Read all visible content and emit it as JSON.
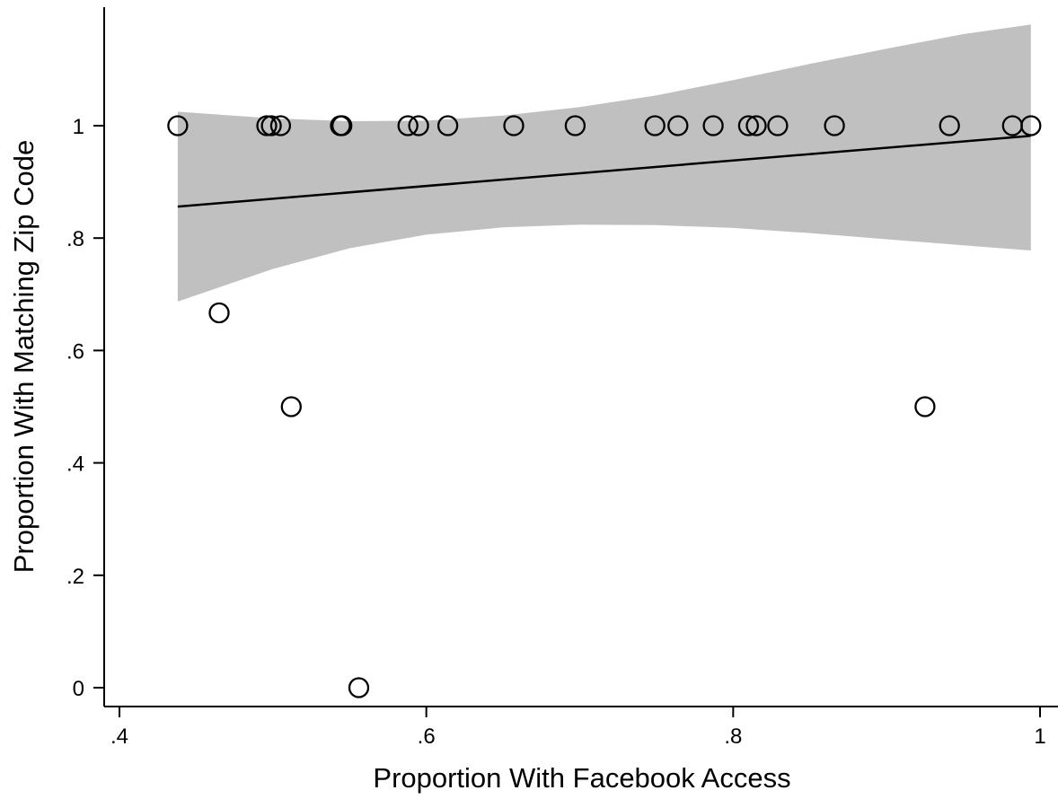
{
  "chart_data": {
    "type": "scatter",
    "title": "",
    "xlabel": "Proportion With Facebook Access",
    "ylabel": "Proportion With Matching Zip Code",
    "xlim": [
      0.4,
      1.0
    ],
    "ylim": [
      0,
      1.0
    ],
    "x_ticks": [
      {
        "value": 0.4,
        "label": ".4"
      },
      {
        "value": 0.6,
        "label": ".6"
      },
      {
        "value": 0.8,
        "label": ".8"
      },
      {
        "value": 1.0,
        "label": "1"
      }
    ],
    "y_ticks": [
      {
        "value": 0,
        "label": "0"
      },
      {
        "value": 0.2,
        "label": ".2"
      },
      {
        "value": 0.4,
        "label": ".4"
      },
      {
        "value": 0.6,
        "label": ".6"
      },
      {
        "value": 0.8,
        "label": ".8"
      },
      {
        "value": 1.0,
        "label": "1"
      }
    ],
    "grid": false,
    "legend": "none",
    "points": [
      {
        "x": 0.438,
        "y": 1.0
      },
      {
        "x": 0.465,
        "y": 0.667
      },
      {
        "x": 0.496,
        "y": 1.0
      },
      {
        "x": 0.499,
        "y": 1.0
      },
      {
        "x": 0.505,
        "y": 1.0
      },
      {
        "x": 0.512,
        "y": 0.5
      },
      {
        "x": 0.544,
        "y": 1.0
      },
      {
        "x": 0.545,
        "y": 1.0
      },
      {
        "x": 0.556,
        "y": 0.0
      },
      {
        "x": 0.588,
        "y": 1.0
      },
      {
        "x": 0.595,
        "y": 1.0
      },
      {
        "x": 0.614,
        "y": 1.0
      },
      {
        "x": 0.657,
        "y": 1.0
      },
      {
        "x": 0.697,
        "y": 1.0
      },
      {
        "x": 0.749,
        "y": 1.0
      },
      {
        "x": 0.764,
        "y": 1.0
      },
      {
        "x": 0.787,
        "y": 1.0
      },
      {
        "x": 0.81,
        "y": 1.0
      },
      {
        "x": 0.815,
        "y": 1.0
      },
      {
        "x": 0.829,
        "y": 1.0
      },
      {
        "x": 0.866,
        "y": 1.0
      },
      {
        "x": 0.925,
        "y": 0.5
      },
      {
        "x": 0.941,
        "y": 1.0
      },
      {
        "x": 0.982,
        "y": 1.0
      },
      {
        "x": 0.994,
        "y": 1.0
      }
    ],
    "fit_line": {
      "x": [
        0.438,
        0.994
      ],
      "y": [
        0.856,
        0.982
      ]
    },
    "confidence_band": {
      "x": [
        0.438,
        0.5,
        0.55,
        0.6,
        0.65,
        0.7,
        0.75,
        0.8,
        0.85,
        0.9,
        0.95,
        0.994
      ],
      "lower": [
        0.687,
        0.745,
        0.782,
        0.806,
        0.819,
        0.824,
        0.823,
        0.818,
        0.809,
        0.798,
        0.787,
        0.778
      ],
      "upper": [
        1.025,
        1.013,
        1.008,
        1.009,
        1.018,
        1.033,
        1.054,
        1.081,
        1.11,
        1.137,
        1.163,
        1.18
      ]
    },
    "colors": {
      "band": "#c0c0c0",
      "line": "#000000",
      "marker": "#000000",
      "axis": "#000000"
    }
  }
}
